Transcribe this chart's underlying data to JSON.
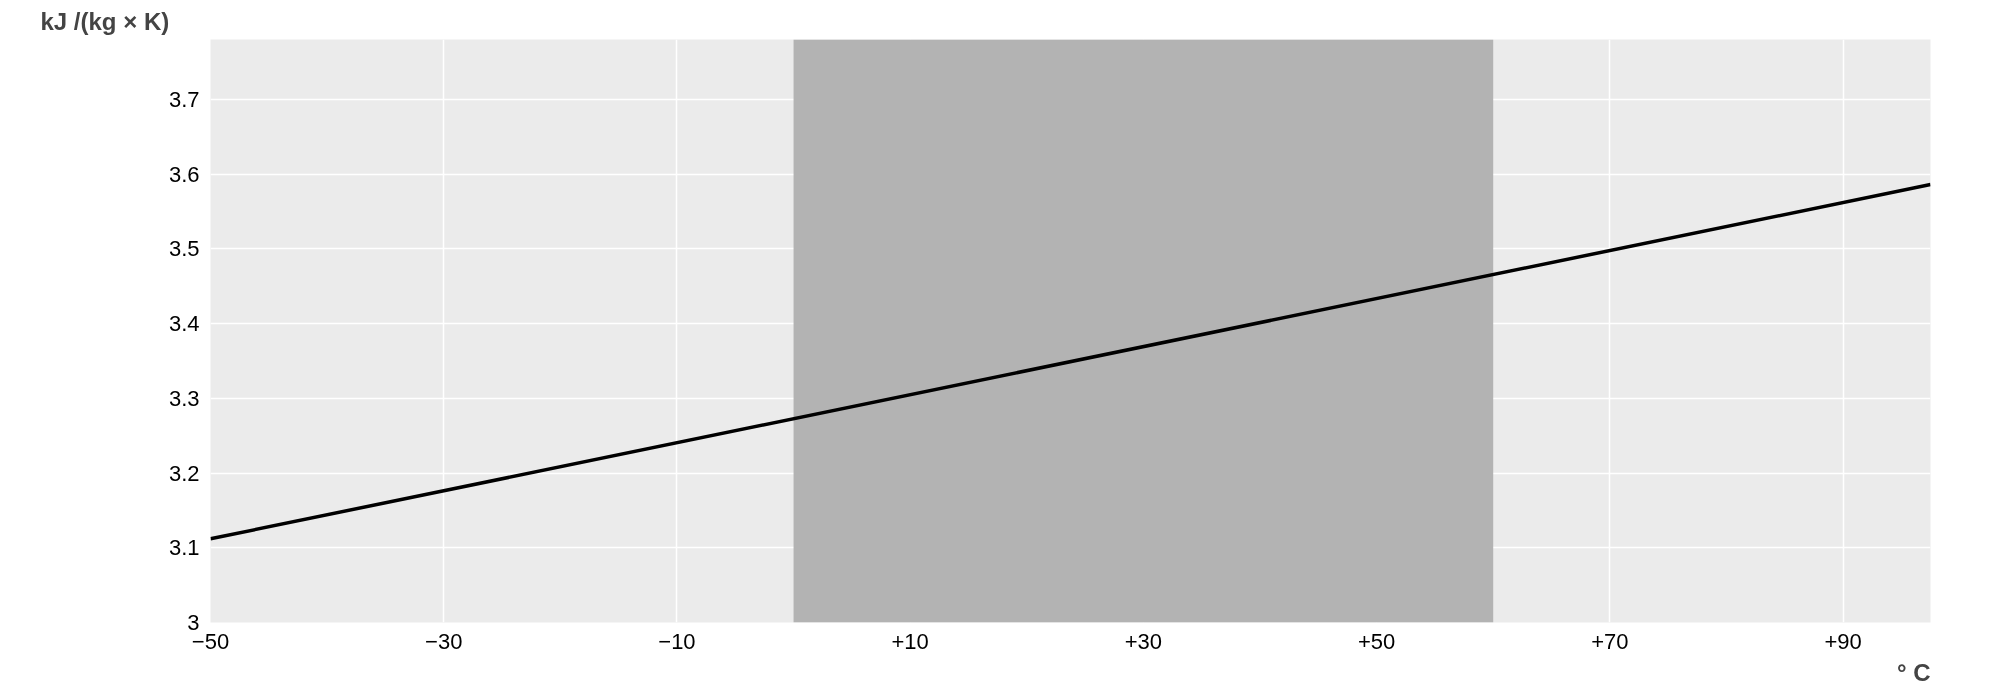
{
  "chart_data": {
    "type": "line",
    "ylabel": "kJ /(kg × K)",
    "xlabel": "° C",
    "x": [
      -50,
      97.5
    ],
    "series": [
      {
        "color": "#000000",
        "values": [
          3.112,
          3.586
        ]
      }
    ],
    "xlim": [
      -50,
      97.5
    ],
    "ylim": [
      3,
      3.78
    ],
    "xticks": [
      -50,
      -30,
      -10,
      {
        "value": 10,
        "label": "+10"
      },
      {
        "value": 30,
        "label": "+30"
      },
      {
        "value": 50,
        "label": "+50"
      },
      {
        "value": 70,
        "label": "+70"
      },
      {
        "value": 90,
        "label": "+90"
      }
    ],
    "yticks": [
      3,
      3.1,
      3.2,
      3.3,
      3.4,
      3.5,
      3.6,
      3.7
    ],
    "bands": [
      {
        "axis": "x",
        "from": 0,
        "to": 60,
        "color": "#b3b3b3"
      }
    ],
    "grid": true,
    "marker": "none",
    "line_style": "solid"
  }
}
